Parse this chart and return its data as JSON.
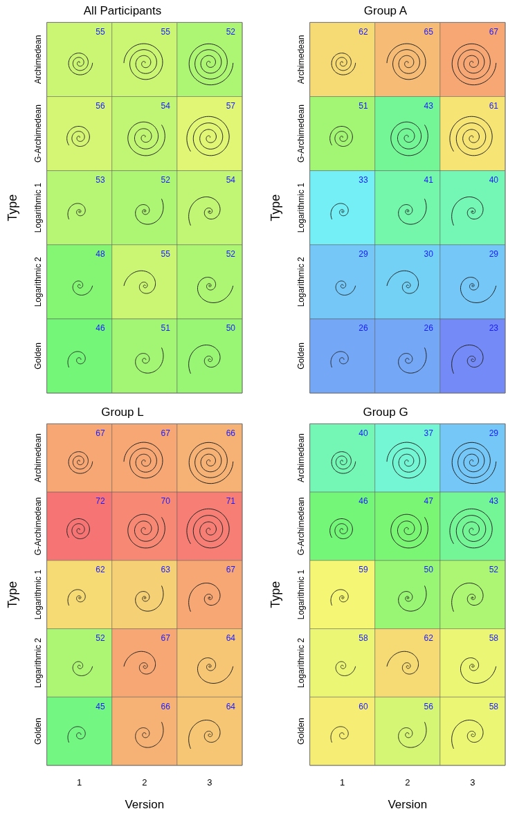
{
  "chart_data": [
    {
      "type": "heatmap",
      "title": "All Participants",
      "ylabel": "Type",
      "categories": [
        "1",
        "2",
        "3"
      ],
      "y_categories": [
        "Archimedean",
        "G-Archimedean",
        "Logarithmic 1",
        "Logarithmic 2",
        "Golden"
      ],
      "cells": [
        [
          55,
          55,
          52
        ],
        [
          56,
          54,
          57
        ],
        [
          53,
          52,
          54
        ],
        [
          48,
          55,
          52
        ],
        [
          46,
          51,
          50
        ]
      ],
      "data_labels": true,
      "tick_labels": "y"
    },
    {
      "type": "heatmap",
      "title": "Group A",
      "ylabel": "Type",
      "categories": [
        "1",
        "2",
        "3"
      ],
      "y_categories": [
        "Archimedean",
        "G-Archimedean",
        "Logarithmic 1",
        "Logarithmic 2",
        "Golden"
      ],
      "cells": [
        [
          62,
          65,
          67
        ],
        [
          51,
          43,
          61
        ],
        [
          33,
          41,
          40
        ],
        [
          29,
          30,
          29
        ],
        [
          26,
          26,
          23
        ]
      ],
      "data_labels": true,
      "tick_labels": "y"
    },
    {
      "type": "heatmap",
      "title": "Group L",
      "xlabel": "Version",
      "ylabel": "Type",
      "categories": [
        "1",
        "2",
        "3"
      ],
      "y_categories": [
        "Archimedean",
        "G-Archimedean",
        "Logarithmic 1",
        "Logarithmic 2",
        "Golden"
      ],
      "cells": [
        [
          67,
          67,
          66
        ],
        [
          72,
          70,
          71
        ],
        [
          62,
          63,
          67
        ],
        [
          52,
          67,
          64
        ],
        [
          45,
          66,
          64
        ]
      ],
      "data_labels": true
    },
    {
      "type": "heatmap",
      "title": "Group G",
      "xlabel": "Version",
      "ylabel": "Type",
      "categories": [
        "1",
        "2",
        "3"
      ],
      "y_categories": [
        "Archimedean",
        "G-Archimedean",
        "Logarithmic 1",
        "Logarithmic 2",
        "Golden"
      ],
      "cells": [
        [
          40,
          37,
          29
        ],
        [
          46,
          47,
          43
        ],
        [
          59,
          50,
          52
        ],
        [
          58,
          62,
          58
        ],
        [
          60,
          56,
          58
        ]
      ],
      "data_labels": true
    }
  ]
}
